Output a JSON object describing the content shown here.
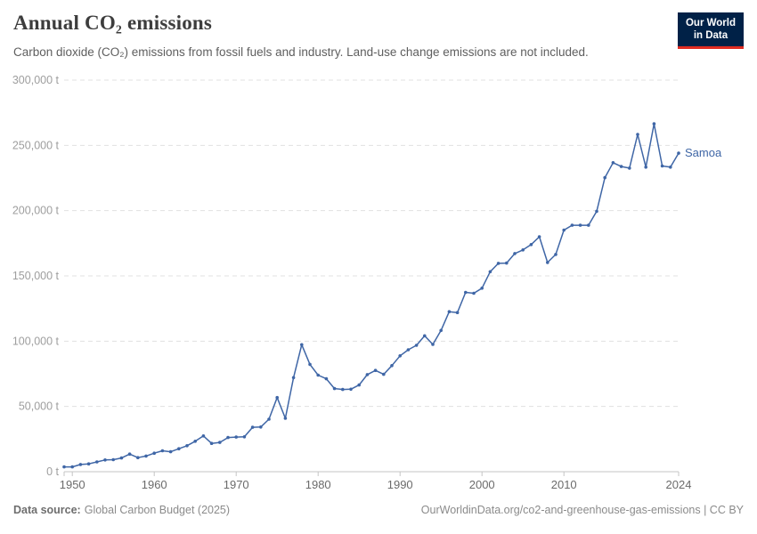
{
  "header": {
    "title": "Annual CO₂ emissions",
    "subtitle": "Carbon dioxide (CO₂) emissions from fossil fuels and industry. Land-use change emissions are not included.",
    "logo": {
      "line1": "Our World",
      "line2": "in Data"
    }
  },
  "footer": {
    "source_label": "Data source:",
    "source_text": "Global Carbon Budget (2025)",
    "link_text": "OurWorldinData.org/co2-and-greenhouse-gas-emissions | CC BY"
  },
  "colors": {
    "line": "#3f66a6",
    "series_label": "#3f66a6",
    "gridline": "#e0e0e0",
    "axis": "#c4c4c4",
    "y_label": "#9e9e9e",
    "x_label": "#6b6b6b",
    "logo_bg": "#002147",
    "logo_accent": "#e02c21"
  },
  "chart_data": {
    "type": "line",
    "title": "Annual CO₂ emissions",
    "entity": "Samoa",
    "series_label": "Samoa",
    "unit": "t",
    "grid": "horizontal-dashed",
    "legend_position": "end-of-line",
    "ylim": [
      0,
      300000
    ],
    "yticks": [
      0,
      50000,
      100000,
      150000,
      200000,
      250000,
      300000
    ],
    "ytick_labels": [
      "0 t",
      "50,000 t",
      "100,000 t",
      "150,000 t",
      "200,000 t",
      "250,000 t",
      "300,000 t"
    ],
    "xticks": [
      1950,
      1960,
      1970,
      1980,
      1990,
      2000,
      2010,
      2024
    ],
    "xtick_labels": [
      "1950",
      "1960",
      "1970",
      "1980",
      "1990",
      "2000",
      "2010",
      "2024"
    ],
    "x": [
      1949,
      1950,
      1951,
      1952,
      1953,
      1954,
      1955,
      1956,
      1957,
      1958,
      1959,
      1960,
      1961,
      1962,
      1963,
      1964,
      1965,
      1966,
      1967,
      1968,
      1969,
      1970,
      1971,
      1972,
      1973,
      1974,
      1975,
      1976,
      1977,
      1978,
      1979,
      1980,
      1981,
      1982,
      1983,
      1984,
      1985,
      1986,
      1987,
      1988,
      1989,
      1990,
      1991,
      1992,
      1993,
      1994,
      1995,
      1996,
      1997,
      1998,
      1999,
      2000,
      2001,
      2002,
      2003,
      2004,
      2005,
      2006,
      2007,
      2008,
      2009,
      2010,
      2011,
      2012,
      2013,
      2014,
      2015,
      2016,
      2017,
      2018,
      2019,
      2020,
      2021,
      2022,
      2023,
      2024
    ],
    "values": [
      3700,
      3700,
      5500,
      6000,
      7500,
      9000,
      9200,
      10500,
      13500,
      10800,
      12000,
      14200,
      16000,
      15300,
      17600,
      19900,
      23300,
      27400,
      21700,
      22400,
      26200,
      26500,
      26700,
      34000,
      34200,
      40200,
      56800,
      40900,
      72100,
      97300,
      82200,
      74000,
      71200,
      63700,
      63000,
      63200,
      66400,
      74400,
      77600,
      74600,
      81300,
      88800,
      93400,
      96800,
      104100,
      97500,
      108200,
      122600,
      121900,
      137400,
      136700,
      140600,
      153200,
      159600,
      159800,
      167100,
      169900,
      174000,
      180000,
      160300,
      166400,
      185100,
      188800,
      188800,
      188800,
      199500,
      225300,
      236700,
      233800,
      232600,
      258400,
      233300,
      266500,
      234200,
      233300,
      244000
    ]
  }
}
